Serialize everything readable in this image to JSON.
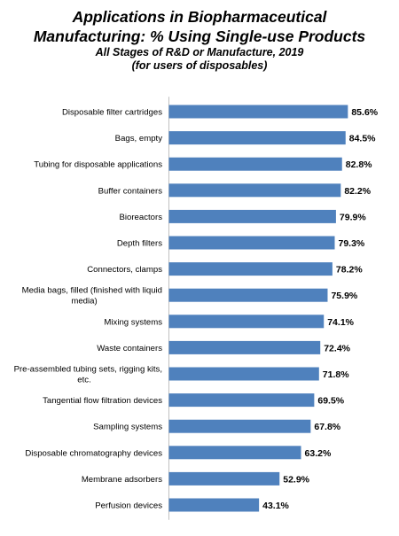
{
  "chart_data": {
    "type": "bar",
    "orientation": "horizontal",
    "title_lines": [
      "Applications in Biopharmaceutical",
      "Manufacturing: % Using Single-use Products"
    ],
    "subtitle_lines": [
      "All Stages of R&D or Manufacture, 2019",
      "(for users of disposables)"
    ],
    "categories": [
      "Disposable filter cartridges",
      "Bags, empty",
      "Tubing for disposable applications",
      "Buffer containers",
      "Bioreactors",
      "Depth filters",
      "Connectors, clamps",
      "Media bags, filled (finished with liquid media)",
      "Mixing systems",
      "Waste containers",
      "Pre-assembled tubing sets, rigging kits, etc.",
      "Tangential flow filtration devices",
      "Sampling systems",
      "Disposable chromatography devices",
      "Membrane adsorbers",
      "Perfusion devices"
    ],
    "category_lines": [
      [
        "Disposable filter cartridges"
      ],
      [
        "Bags, empty"
      ],
      [
        "Tubing for disposable applications"
      ],
      [
        "Buffer containers"
      ],
      [
        "Bioreactors"
      ],
      [
        "Depth filters"
      ],
      [
        "Connectors, clamps"
      ],
      [
        "Media bags, filled (finished with liquid",
        "media)"
      ],
      [
        "Mixing systems"
      ],
      [
        "Waste containers"
      ],
      [
        "Pre-assembled tubing sets, rigging kits,",
        "etc."
      ],
      [
        "Tangential flow filtration devices"
      ],
      [
        "Sampling systems"
      ],
      [
        "Disposable chromatography devices"
      ],
      [
        "Membrane adsorbers"
      ],
      [
        "Perfusion devices"
      ]
    ],
    "values": [
      85.6,
      84.5,
      82.8,
      82.2,
      79.9,
      79.3,
      78.2,
      75.9,
      74.1,
      72.4,
      71.8,
      69.5,
      67.8,
      63.2,
      52.9,
      43.1
    ],
    "value_labels": [
      "85.6%",
      "84.5%",
      "82.8%",
      "82.2%",
      "79.9%",
      "79.3%",
      "78.2%",
      "75.9%",
      "74.1%",
      "72.4%",
      "71.8%",
      "69.5%",
      "67.8%",
      "63.2%",
      "52.9%",
      "43.1%"
    ],
    "bar_color": "#4f81bd",
    "xlim": [
      0,
      100
    ],
    "grid": false,
    "legend": "none"
  }
}
